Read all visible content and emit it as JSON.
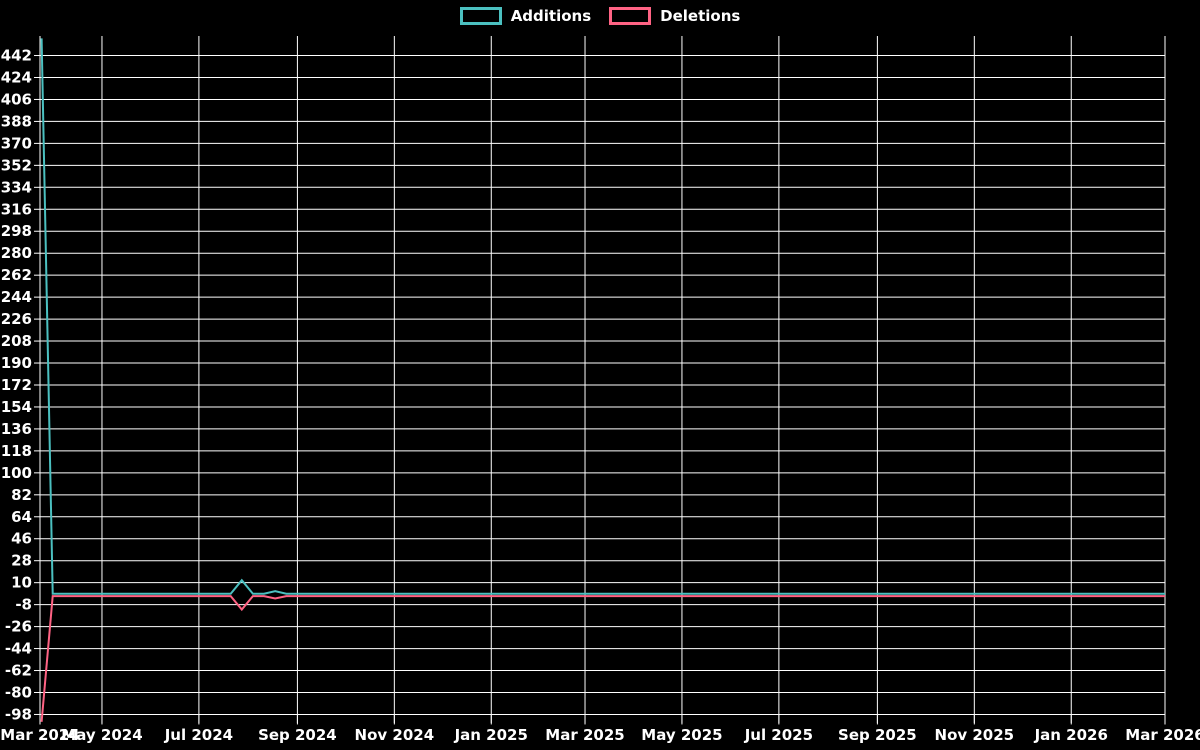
{
  "chart_data": {
    "type": "line",
    "title": "",
    "legend_position": "top",
    "background_color": "#000000",
    "grid": true,
    "grid_color": "#ffffff",
    "text_color": "#ffffff",
    "x_axis": {
      "type": "time",
      "range": [
        "2024-03-23",
        "2026-03-01"
      ],
      "ticks": [
        {
          "label": "Mar 2024",
          "date": "2024-03-23",
          "grid": false
        },
        {
          "label": "May 2024",
          "date": "2024-05-01",
          "grid": true
        },
        {
          "label": "Jul 2024",
          "date": "2024-07-01",
          "grid": true
        },
        {
          "label": "Sep 2024",
          "date": "2024-09-01",
          "grid": true
        },
        {
          "label": "Nov 2024",
          "date": "2024-11-01",
          "grid": true
        },
        {
          "label": "Jan 2025",
          "date": "2025-01-01",
          "grid": true
        },
        {
          "label": "Mar 2025",
          "date": "2025-03-01",
          "grid": true
        },
        {
          "label": "May 2025",
          "date": "2025-05-01",
          "grid": true
        },
        {
          "label": "Jul 2025",
          "date": "2025-07-01",
          "grid": true
        },
        {
          "label": "Sep 2025",
          "date": "2025-09-01",
          "grid": true
        },
        {
          "label": "Nov 2025",
          "date": "2025-11-01",
          "grid": true
        },
        {
          "label": "Jan 2026",
          "date": "2026-01-01",
          "grid": true
        },
        {
          "label": "Mar 2026",
          "date": "2026-03-01",
          "grid": true
        }
      ]
    },
    "y_axis": {
      "tick_min": -98,
      "tick_max": 442,
      "tick_step": 18,
      "range": [
        -105,
        458
      ]
    },
    "interpolation": "linear",
    "series": [
      {
        "name": "Additions",
        "color": "#4bc0c0",
        "points": [
          [
            "2024-03-24",
            456
          ],
          [
            "2024-03-31",
            1
          ],
          [
            "2024-07-21",
            1
          ],
          [
            "2024-07-28",
            12
          ],
          [
            "2024-08-04",
            1
          ],
          [
            "2024-08-11",
            1
          ],
          [
            "2024-08-18",
            3
          ],
          [
            "2024-08-25",
            1
          ],
          [
            "2026-03-01",
            1
          ]
        ]
      },
      {
        "name": "Deletions",
        "color": "#ff6384",
        "points": [
          [
            "2024-03-24",
            -104
          ],
          [
            "2024-03-31",
            -1
          ],
          [
            "2024-07-21",
            -1
          ],
          [
            "2024-07-28",
            -12
          ],
          [
            "2024-08-04",
            -1
          ],
          [
            "2024-08-11",
            -1
          ],
          [
            "2024-08-18",
            -3
          ],
          [
            "2024-08-25",
            -1
          ],
          [
            "2026-03-01",
            -1
          ]
        ]
      }
    ]
  }
}
